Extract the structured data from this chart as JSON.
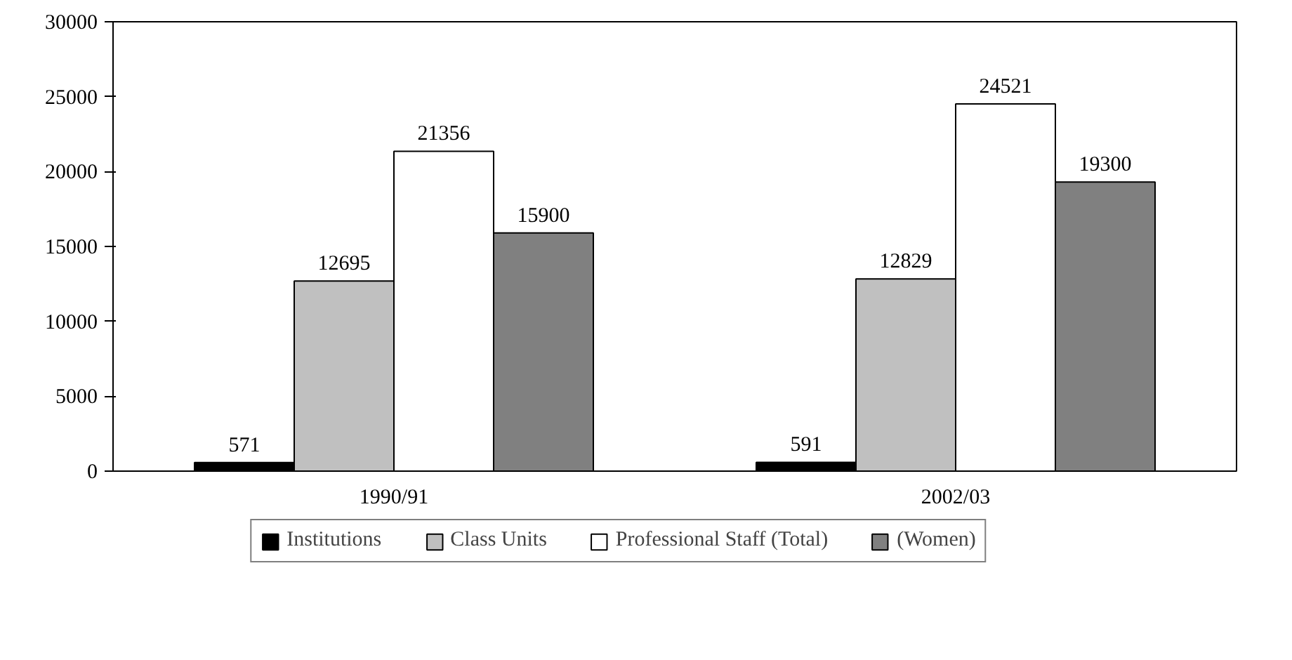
{
  "chart_data": {
    "type": "bar",
    "categories": [
      "1990/91",
      "2002/03"
    ],
    "series": [
      {
        "name": "Institutions",
        "color": "#000000",
        "values": [
          571,
          591
        ]
      },
      {
        "name": "Class Units",
        "color": "#c0c0c0",
        "values": [
          12695,
          12829
        ]
      },
      {
        "name": "Professional Staff (Total)",
        "color": "#ffffff",
        "values": [
          21356,
          24521
        ]
      },
      {
        "name": "(Women)",
        "color": "#808080",
        "values": [
          15900,
          19300
        ]
      }
    ],
    "ylim": [
      0,
      30000
    ],
    "yticks": [
      0,
      5000,
      10000,
      15000,
      20000,
      25000,
      30000
    ],
    "data_labels": true,
    "grid": false,
    "legend": "bottom"
  }
}
